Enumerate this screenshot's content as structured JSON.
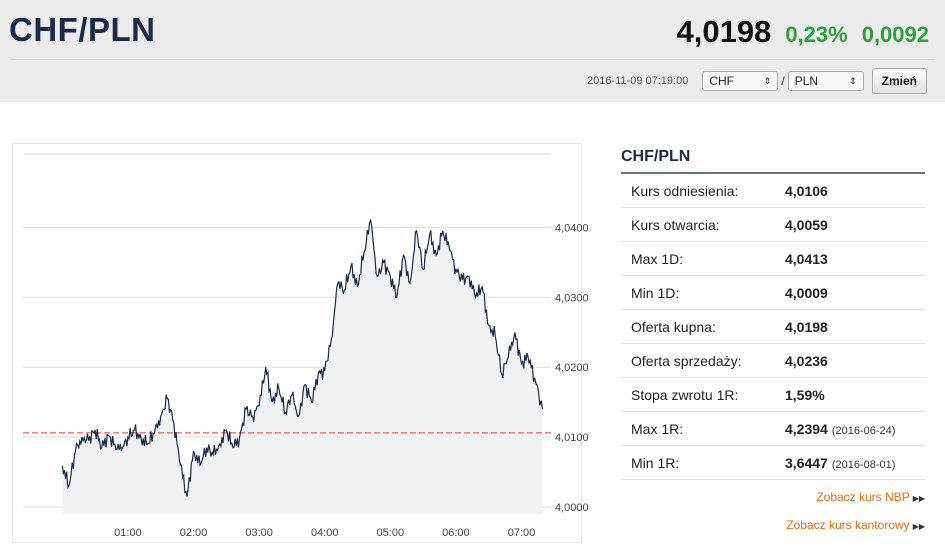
{
  "header": {
    "pair": "CHF/PLN",
    "price": "4,0198",
    "change_pct": "0,23%",
    "change_abs": "0,0092",
    "timestamp": "2016-11-09 07:19:00",
    "from_currency": "CHF",
    "to_currency": "PLN",
    "slash": "/",
    "change_button": "Zmień"
  },
  "colors": {
    "positive": "#2e9e3e",
    "link": "#e66b12",
    "title": "#1b2a47",
    "ref_line": "#e53935"
  },
  "panel": {
    "title": "CHF/PLN",
    "rows": [
      {
        "label": "Kurs odniesienia:",
        "value": "4,0106",
        "date": ""
      },
      {
        "label": "Kurs otwarcia:",
        "value": "4,0059",
        "date": ""
      },
      {
        "label": "Max 1D:",
        "value": "4,0413",
        "date": ""
      },
      {
        "label": "Min 1D:",
        "value": "4,0009",
        "date": ""
      },
      {
        "label": "Oferta kupna:",
        "value": "4,0198",
        "date": ""
      },
      {
        "label": "Oferta sprzedaży:",
        "value": "4,0236",
        "date": ""
      },
      {
        "label": "Stopa zwrotu 1R:",
        "value": "1,59%",
        "date": ""
      },
      {
        "label": "Max 1R:",
        "value": "4,2394",
        "date": "(2016-06-24)"
      },
      {
        "label": "Min 1R:",
        "value": "3,6447",
        "date": "(2016-08-01)"
      }
    ],
    "link_nbp": "Zobacz kurs NBP",
    "link_kantor": "Zobacz kurs kantorowy"
  },
  "chart_data": {
    "type": "line",
    "y_tick_labels": [
      "4,0000",
      "4,0100",
      "4,0200",
      "4,0300",
      "4,0400"
    ],
    "x_tick_labels": [
      "01:00",
      "02:00",
      "03:00",
      "04:00",
      "05:00",
      "06:00",
      "07:00"
    ],
    "ylim": [
      3.999,
      4.0505
    ],
    "reference_value": 4.0106,
    "series": [
      {
        "x_hours": [
          0.0,
          0.1,
          0.2,
          0.3,
          0.4,
          0.5,
          0.6,
          0.7,
          0.8,
          0.9,
          1.0,
          1.1,
          1.2,
          1.3,
          1.4,
          1.5,
          1.6,
          1.7,
          1.8,
          1.9,
          2.0,
          2.1,
          2.2,
          2.3,
          2.4,
          2.5,
          2.6,
          2.7,
          2.8,
          2.9,
          3.0,
          3.1,
          3.2,
          3.3,
          3.4,
          3.5,
          3.6,
          3.7,
          3.8,
          3.9,
          4.0,
          4.1,
          4.2,
          4.3,
          4.4,
          4.5,
          4.6,
          4.7,
          4.8,
          4.9,
          5.0,
          5.1,
          5.2,
          5.3,
          5.4,
          5.5,
          5.6,
          5.7,
          5.8,
          5.9,
          6.0,
          6.1,
          6.2,
          6.3,
          6.4,
          6.5,
          6.6,
          6.7,
          6.8,
          6.9,
          7.0,
          7.1,
          7.2,
          7.32
        ],
        "values": [
          4.0059,
          4.003,
          4.008,
          4.01,
          4.0095,
          4.011,
          4.0085,
          4.0102,
          4.009,
          4.008,
          4.01,
          4.011,
          4.0098,
          4.009,
          4.0105,
          4.013,
          4.0155,
          4.012,
          4.006,
          4.0015,
          4.008,
          4.006,
          4.0085,
          4.0075,
          4.009,
          4.011,
          4.0085,
          4.0098,
          4.014,
          4.013,
          4.0145,
          4.02,
          4.015,
          4.017,
          4.0135,
          4.016,
          4.013,
          4.0175,
          4.015,
          4.019,
          4.0195,
          4.024,
          4.032,
          4.031,
          4.0345,
          4.0315,
          4.0365,
          4.041,
          4.033,
          4.035,
          4.033,
          4.03,
          4.036,
          4.032,
          4.0395,
          4.034,
          4.039,
          4.036,
          4.0395,
          4.037,
          4.034,
          4.0325,
          4.033,
          4.03,
          4.0315,
          4.026,
          4.0245,
          4.019,
          4.0215,
          4.025,
          4.0205,
          4.0215,
          4.0185,
          4.014
        ]
      }
    ],
    "grid": true
  }
}
